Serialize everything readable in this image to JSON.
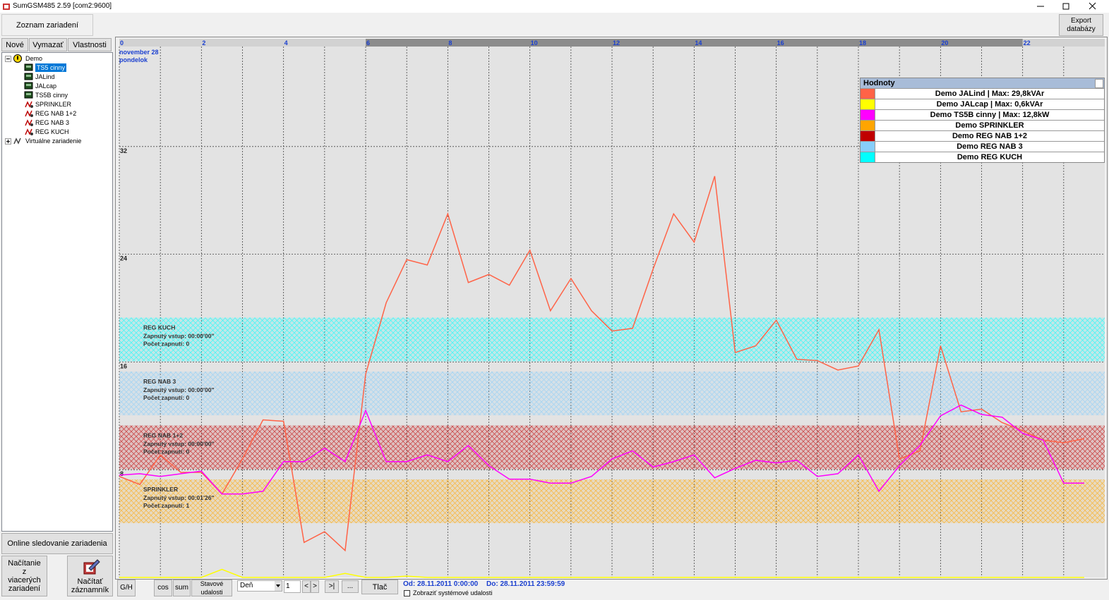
{
  "window": {
    "title": "SumGSM485 2.59 [com2:9600]"
  },
  "toolbar": {
    "tab": "Zoznam zariadení",
    "export_button": "Export databázy"
  },
  "sidebar": {
    "buttons": [
      "Nové",
      "Vymazať",
      "Vlastnosti"
    ],
    "tree": [
      {
        "label": "Demo",
        "children": [
          "TS5 cinny",
          "JALind",
          "JALcap",
          "TS5B cinny",
          "SPRINKLER",
          "REG NAB 1+2",
          "REG NAB 3",
          "REG KUCH"
        ]
      },
      {
        "label": "Virtuálne zariadenie"
      }
    ],
    "online_button": "Online sledovanie zariadenia",
    "multi_load_button": "Načítanie z viacerých zariadení",
    "load_log_button": "Načítať záznamník"
  },
  "bottom_bar": {
    "buttons": [
      "G/H",
      "cos",
      "sum",
      "Stavové udalosti"
    ],
    "period": "Deň",
    "count": 1,
    "prev": "<",
    "next": ">",
    "last": ">|",
    "more": "...",
    "print": "Tlač",
    "range_from": "Od: 28.11.2011 0:00:00",
    "range_to": "Do: 28.11.2011 23:59:59",
    "checkbox": "Zobraziť systémové udalosti"
  },
  "chart_data": {
    "type": "line",
    "date": "november 28",
    "weekday": "pondelok",
    "xlim": [
      0,
      24
    ],
    "xticks": [
      0,
      2,
      4,
      6,
      8,
      10,
      12,
      14,
      16,
      18,
      20,
      22
    ],
    "xminor_ticks": [
      1,
      3,
      5,
      7,
      9,
      11,
      13,
      15,
      17,
      19,
      21,
      23
    ],
    "ylim": [
      0,
      40
    ],
    "yticks": [
      8,
      16,
      24,
      32
    ],
    "grid": true,
    "header_band": [
      6,
      22
    ],
    "legend_title": "Hodnoty",
    "legend_position": "top-right",
    "x": [
      0,
      0.5,
      1,
      1.5,
      2,
      2.5,
      3,
      3.5,
      4,
      4.5,
      5,
      5.5,
      6,
      6.5,
      7,
      7.5,
      8,
      8.5,
      9,
      9.5,
      10,
      10.5,
      11,
      11.5,
      12,
      12.5,
      13,
      13.5,
      14,
      14.5,
      15,
      15.5,
      16,
      16.5,
      17,
      17.5,
      18,
      18.5,
      19,
      19.5,
      20,
      20.5,
      21,
      21.5,
      22,
      22.5,
      23,
      23.5
    ],
    "series": [
      {
        "name": "Demo JALind | Max: 29,8kVAr",
        "color": "#ff6347",
        "values": [
          7.5,
          6.9,
          9.1,
          7.8,
          7.8,
          6.2,
          8.8,
          11.7,
          11.6,
          2.6,
          3.4,
          2.0,
          15.1,
          20.4,
          23.6,
          23.2,
          27.0,
          21.9,
          22.5,
          21.7,
          24.3,
          19.8,
          22.2,
          19.8,
          18.3,
          18.5,
          22.9,
          27.0,
          24.9,
          29.8,
          16.7,
          17.2,
          19.1,
          16.2,
          16.1,
          15.4,
          15.7,
          18.4,
          8.8,
          9.4,
          17.2,
          12.3,
          12.5,
          11.5,
          10.9,
          10.2,
          10.0,
          10.3
        ]
      },
      {
        "name": "Demo JALcap | Max: 0,6kVAr",
        "color": "#ffff00",
        "values": [
          0,
          0,
          0,
          0,
          0,
          0.6,
          0,
          0,
          0,
          0,
          0,
          0.3,
          0,
          0,
          0.1,
          0,
          0,
          0,
          0,
          0,
          0,
          0,
          0,
          0,
          0,
          0,
          0,
          0,
          0,
          0,
          0,
          0,
          0,
          0,
          0,
          0,
          0,
          0,
          0,
          0,
          0,
          0,
          0,
          0,
          0,
          0,
          0,
          0
        ]
      },
      {
        "name": "Demo TS5B cinny | Max: 12,8kW",
        "color": "#ff00ff",
        "values": [
          7.6,
          7.7,
          7.5,
          7.7,
          7.9,
          6.2,
          6.2,
          6.4,
          8.6,
          8.6,
          9.6,
          8.6,
          12.4,
          8.6,
          8.6,
          9.1,
          8.6,
          9.8,
          8.3,
          7.3,
          7.3,
          7.0,
          7.0,
          7.5,
          8.8,
          9.4,
          8.2,
          8.6,
          9.1,
          7.4,
          8.1,
          8.7,
          8.5,
          8.7,
          7.5,
          7.7,
          9.1,
          6.4,
          8.3,
          9.8,
          12.0,
          12.8,
          12.1,
          11.9,
          10.7,
          10.2,
          7.0,
          7.0
        ]
      }
    ],
    "status_series": [
      {
        "name": "Demo SPRINKLER",
        "color": "#ffa500",
        "label": "SPRINKLER",
        "lines": [
          "Zapnutý vstup: 00:01'26\"",
          "Počet zapnutí: 1"
        ]
      },
      {
        "name": "Demo REG NAB 1+2",
        "color": "#c00000",
        "label": "REG NAB 1+2",
        "lines": [
          "Zapnutý vstup: 00:00'00\"",
          "Počet zapnutí: 0"
        ]
      },
      {
        "name": "Demo REG NAB 3",
        "color": "#87cefa",
        "label": "REG NAB 3",
        "lines": [
          "Zapnutý vstup: 00:00'00\"",
          "Počet zapnutí: 0"
        ]
      },
      {
        "name": "Demo REG KUCH",
        "color": "#00ffff",
        "label": "REG KUCH",
        "lines": [
          "Zapnutý vstup: 00:00'00\"",
          "Počet zapnutí: 0"
        ]
      }
    ]
  }
}
